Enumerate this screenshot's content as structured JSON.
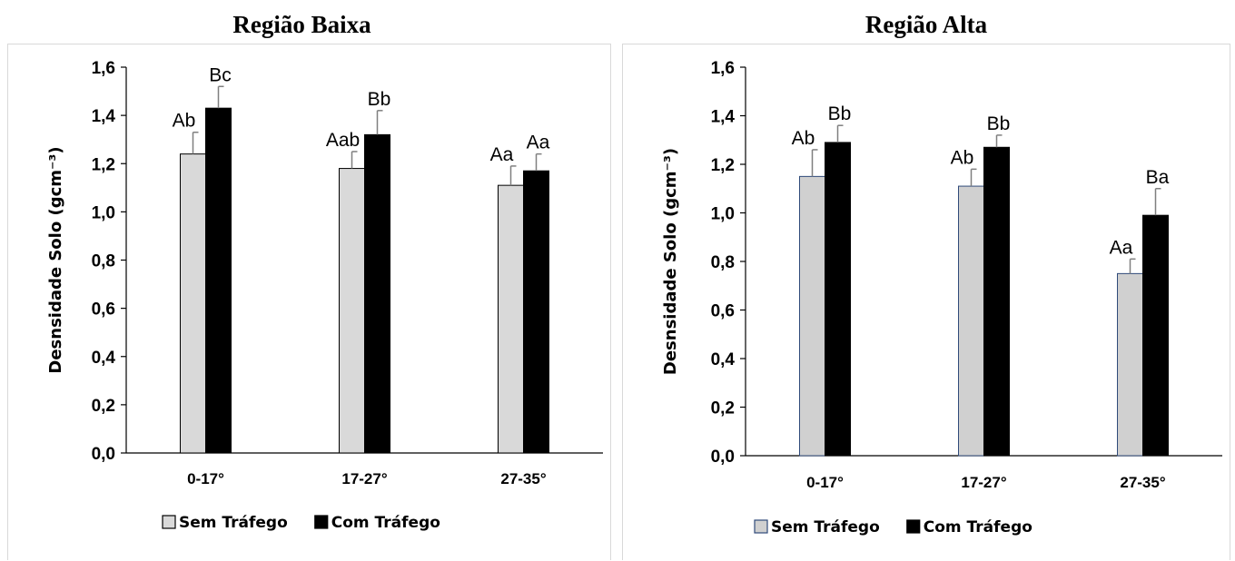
{
  "chart_data": [
    {
      "type": "bar",
      "title": "Região Baixa",
      "ylabel": "Desnsidade Solo (gcm⁻³)",
      "xlabel": "",
      "ylim": [
        0,
        1.6
      ],
      "yticks": [
        "0,0",
        "0,2",
        "0,4",
        "0,6",
        "0,8",
        "1,0",
        "1,2",
        "1,4",
        "1,6"
      ],
      "categories": [
        "0-17°",
        "17-27°",
        "27-35°"
      ],
      "legend_position": "bottom",
      "grid": false,
      "series": [
        {
          "name": "Sem Tráfego",
          "color": "#d9d9d9",
          "stroke": "#000000",
          "values": [
            1.24,
            1.18,
            1.11
          ],
          "errors": [
            0.09,
            0.07,
            0.08
          ],
          "labels": [
            "Ab",
            "Aab",
            "Aa"
          ]
        },
        {
          "name": "Com Tráfego",
          "color": "#000000",
          "stroke": "#000000",
          "values": [
            1.43,
            1.32,
            1.17
          ],
          "errors": [
            0.09,
            0.1,
            0.07
          ],
          "labels": [
            "Bc",
            "Bb",
            "Aa"
          ]
        }
      ]
    },
    {
      "type": "bar",
      "title": "Região Alta",
      "ylabel": "Desnsidade Solo (gcm⁻³)",
      "xlabel": "",
      "ylim": [
        0,
        1.6
      ],
      "yticks": [
        "0,0",
        "0,2",
        "0,4",
        "0,6",
        "0,8",
        "1,0",
        "1,2",
        "1,4",
        "1,6"
      ],
      "categories": [
        "0-17°",
        "17-27°",
        "27-35°"
      ],
      "legend_position": "bottom",
      "grid": false,
      "series": [
        {
          "name": "Sem Tráfego",
          "color": "#d0d0d0",
          "stroke": "#2f4a7a",
          "values": [
            1.15,
            1.11,
            0.75
          ],
          "errors": [
            0.11,
            0.07,
            0.06
          ],
          "labels": [
            "Ab",
            "Ab",
            "Aa"
          ]
        },
        {
          "name": "Com Tráfego",
          "color": "#000000",
          "stroke": "#000000",
          "values": [
            1.29,
            1.27,
            0.99
          ],
          "errors": [
            0.07,
            0.05,
            0.11
          ],
          "labels": [
            "Bb",
            "Bb",
            "Ba"
          ]
        }
      ]
    }
  ]
}
